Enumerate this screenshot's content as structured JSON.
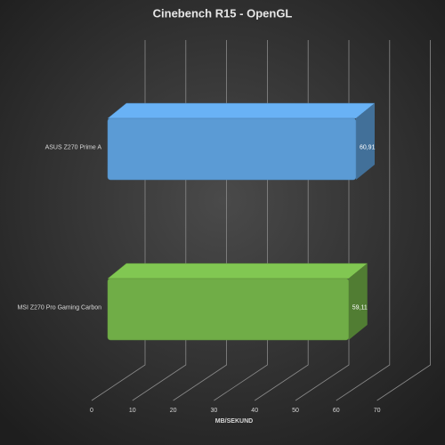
{
  "chart_data": {
    "type": "bar3d",
    "orientation": "horizontal",
    "title": "Cinebench  R15 - OpenGL",
    "categories": [
      "ASUS Z270 Prime A",
      "MSI Z270 Pro Gaming Carbon"
    ],
    "values": [
      60.91,
      59.11
    ],
    "value_labels": [
      "60,91",
      "59,11"
    ],
    "colors": [
      "#5b9bd5",
      "#70ad47"
    ],
    "xlabel": "MB/SEKUND",
    "xlim": [
      0,
      70
    ],
    "xticks": [
      0,
      10,
      20,
      30,
      40,
      50,
      60,
      70
    ],
    "grid": true
  }
}
